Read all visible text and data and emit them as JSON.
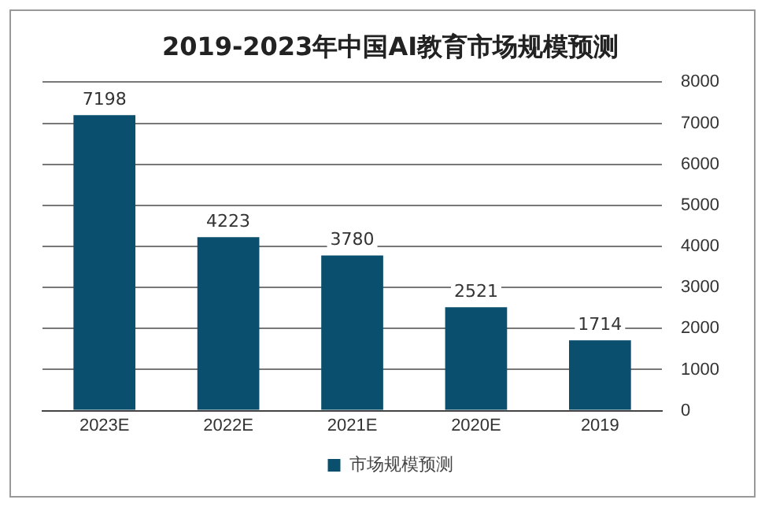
{
  "chart_data": {
    "type": "bar",
    "title": "2019-2023年中国AI教育市场规模预测",
    "categories": [
      "2023E",
      "2022E",
      "2021E",
      "2020E",
      "2019"
    ],
    "series": [
      {
        "name": "市场规模预测",
        "color": "#0a506e",
        "values": [
          7198,
          4223,
          3780,
          2521,
          1714
        ]
      }
    ],
    "ylim": [
      0,
      8000
    ],
    "yticks": [
      0,
      1000,
      2000,
      3000,
      4000,
      5000,
      6000,
      7000,
      8000
    ],
    "grid": "y",
    "legend": "bottom",
    "data_labels": true
  }
}
